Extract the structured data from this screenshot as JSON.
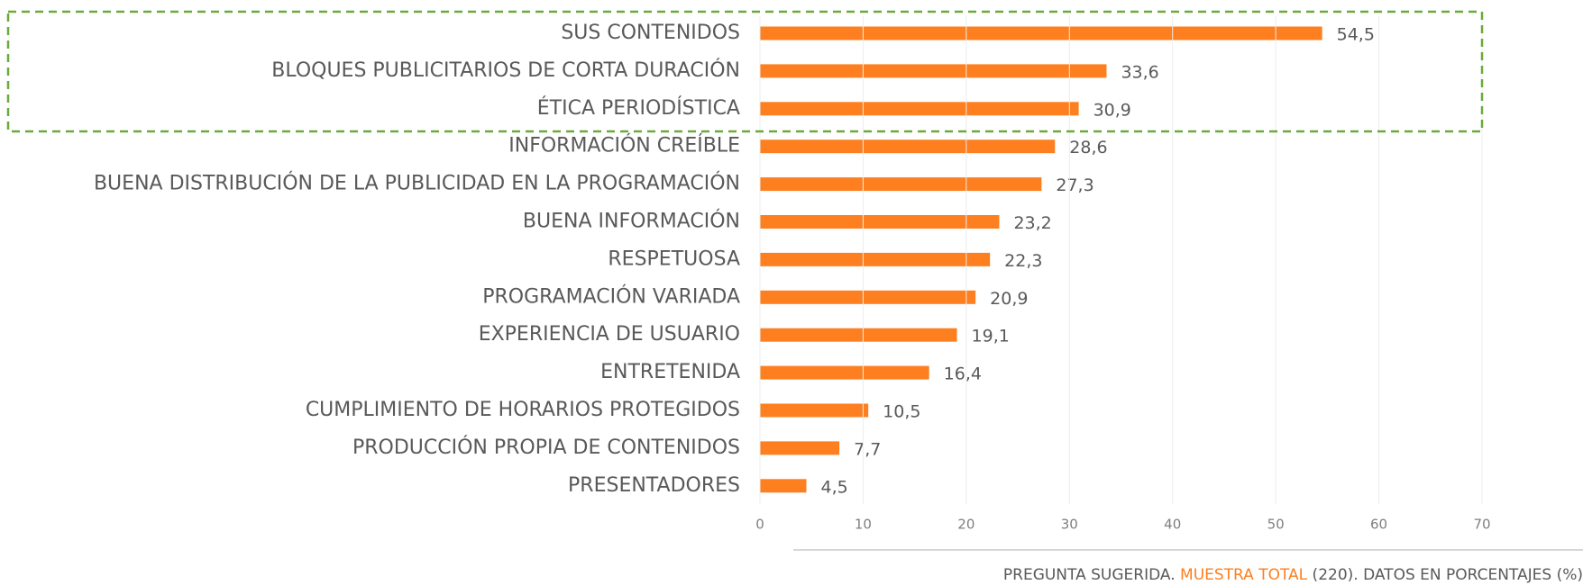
{
  "chart_data": {
    "type": "barh",
    "categories": [
      "SUS CONTENIDOS",
      "BLOQUES PUBLICITARIOS DE CORTA DURACIÓN",
      "ÉTICA PERIODÍSTICA",
      "INFORMACIÓN CREÍBLE",
      "BUENA DISTRIBUCIÓN DE LA PUBLICIDAD EN LA PROGRAMACIÓN",
      "BUENA INFORMACIÓN",
      "RESPETUOSA",
      "PROGRAMACIÓN VARIADA",
      "EXPERIENCIA DE USUARIO",
      "ENTRETENIDA",
      "CUMPLIMIENTO DE HORARIOS PROTEGIDOS",
      "PRODUCCIÓN PROPIA DE CONTENIDOS",
      "PRESENTADORES"
    ],
    "values": [
      54.5,
      33.6,
      30.9,
      28.6,
      27.3,
      23.2,
      22.3,
      20.9,
      19.1,
      16.4,
      10.5,
      7.7,
      4.5
    ],
    "value_labels": [
      "54,5",
      "33,6",
      "30,9",
      "28,6",
      "27,3",
      "23,2",
      "22,3",
      "20,9",
      "19,1",
      "16,4",
      "10,5",
      "7,7",
      "4,5"
    ],
    "color": "#fd7f1f",
    "xlim": [
      0,
      70
    ],
    "xticks": [
      0,
      10,
      20,
      30,
      40,
      50,
      60,
      70
    ],
    "grid": true,
    "note": [
      "PREGUNTA SUGERIDA. ",
      "MUESTRA TOTAL",
      " (220). DATOS EN PORCENTAJES (%)"
    ],
    "note_highlight_color": "#fd7f1f"
  }
}
